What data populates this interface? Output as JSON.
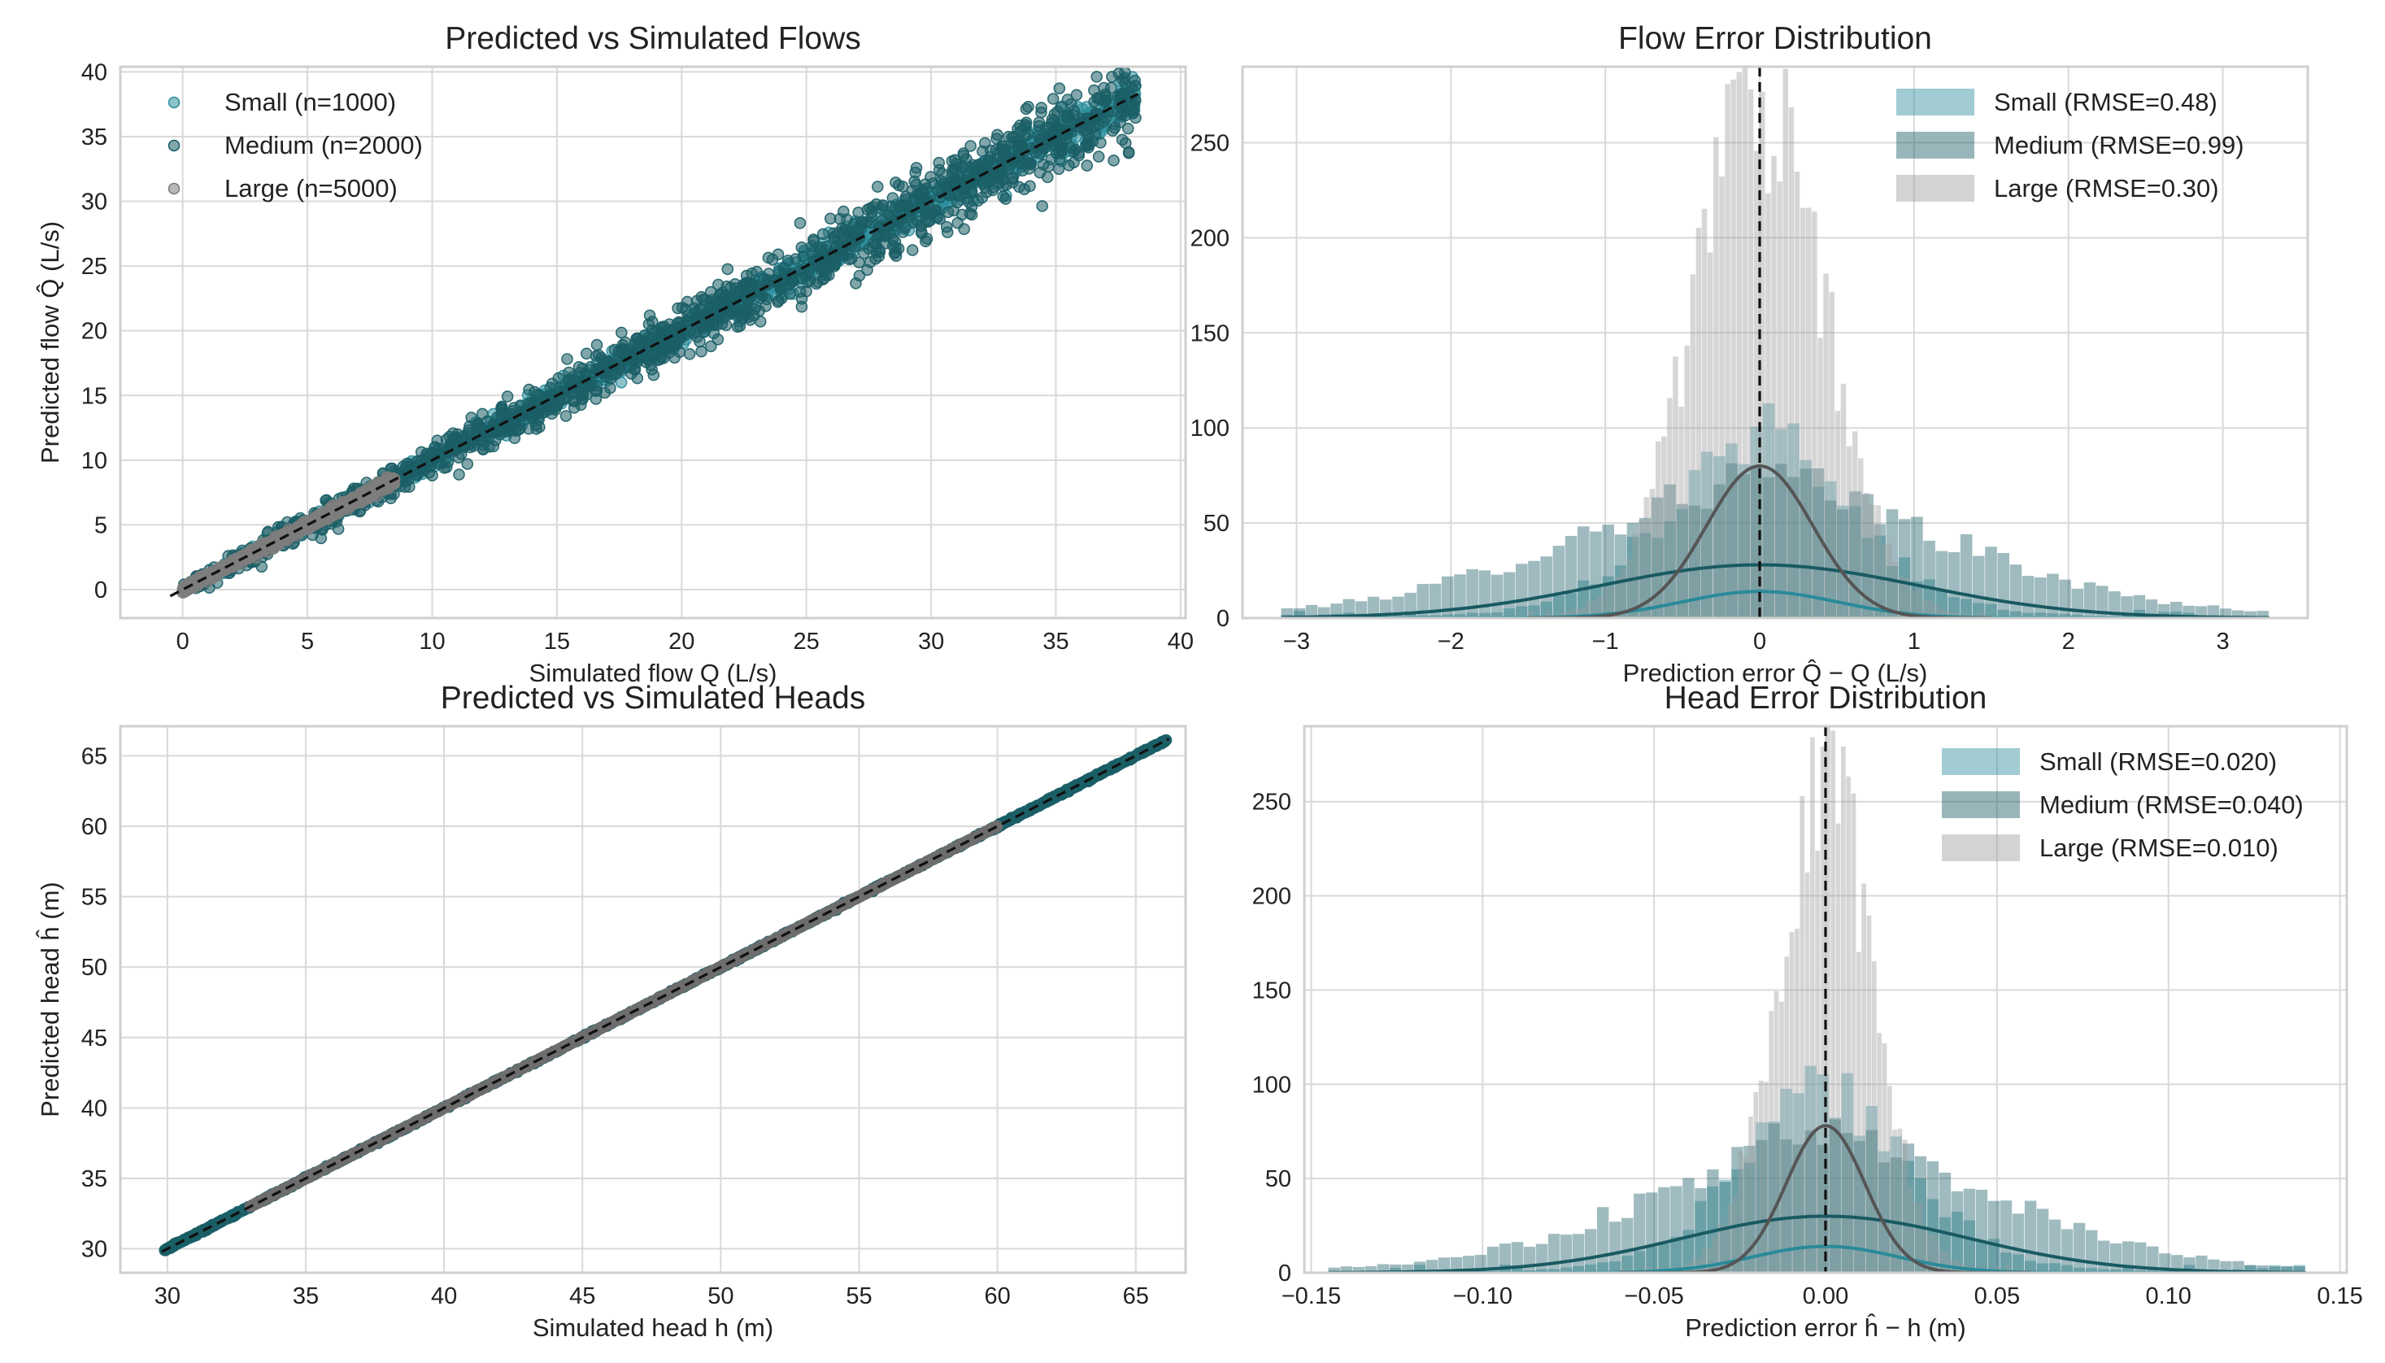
{
  "chart_data": [
    {
      "id": "flows_scatter",
      "type": "scatter",
      "title": "Predicted vs Simulated Flows",
      "xlabel": "Simulated flow Q (L/s)",
      "ylabel": "Predicted flow Q̂ (L/s)",
      "xlim": [
        -2.5,
        40.2
      ],
      "ylim": [
        -2.2,
        40.4
      ],
      "xticks": [
        0,
        5,
        10,
        15,
        20,
        25,
        30,
        35,
        40
      ],
      "yticks": [
        0,
        5,
        10,
        15,
        20,
        25,
        30,
        35,
        40
      ],
      "grid": true,
      "legend_position": "top-left",
      "identity_line": {
        "from": -0.5,
        "to": 38.3,
        "style": "dashed",
        "color": "#111111"
      },
      "series": [
        {
          "name": "Small (n=1000)",
          "n": 1000,
          "x_range": [
            0,
            38.2
          ],
          "noise_sd": 0.48,
          "color": "#2f8f9d"
        },
        {
          "name": "Medium (n=2000)",
          "n": 2000,
          "x_range": [
            0,
            38.2
          ],
          "noise_sd": 0.99,
          "color": "#1b5e66"
        },
        {
          "name": "Large (n=5000)",
          "n": 5000,
          "x_range": [
            0,
            8.5
          ],
          "noise_sd": 0.3,
          "color": "#7d7d7d"
        }
      ]
    },
    {
      "id": "flows_hist",
      "type": "histogram",
      "title": "Flow Error Distribution",
      "xlabel": "Prediction error Q̂ − Q (L/s)",
      "ylabel": "",
      "xlim": [
        -3.35,
        3.55
      ],
      "ylim": [
        0,
        290
      ],
      "xticks": [
        -3,
        -2,
        -1,
        0,
        1,
        2,
        3
      ],
      "yticks": [
        0,
        50,
        100,
        150,
        200,
        250
      ],
      "grid": true,
      "legend_position": "top-right",
      "zero_line": {
        "x": 0,
        "style": "dashed",
        "color": "#111111"
      },
      "series": [
        {
          "name": "Small (RMSE=0.48)",
          "bins": 80,
          "range": [
            -3.1,
            3.3
          ],
          "peak": 100,
          "kde_peak": 14,
          "sd": 0.48,
          "color": "#2f8f9d"
        },
        {
          "name": "Medium (RMSE=0.99)",
          "bins": 80,
          "range": [
            -3.1,
            3.3
          ],
          "peak": 75,
          "kde_peak": 28,
          "sd": 0.99,
          "color": "#1b5e66"
        },
        {
          "name": "Large (RMSE=0.30)",
          "bins": 80,
          "range": [
            -1.5,
            1.5
          ],
          "peak": 272,
          "kde_peak": 80,
          "sd": 0.3,
          "color": "#9e9e9e"
        }
      ]
    },
    {
      "id": "heads_scatter",
      "type": "scatter",
      "title": "Predicted vs Simulated Heads",
      "xlabel": "Simulated head h (m)",
      "ylabel": "Predicted head ĥ (m)",
      "xlim": [
        28.3,
        66.8
      ],
      "ylim": [
        28.3,
        67.1
      ],
      "xticks": [
        30,
        35,
        40,
        45,
        50,
        55,
        60,
        65
      ],
      "yticks": [
        30,
        35,
        40,
        45,
        50,
        55,
        60,
        65
      ],
      "grid": true,
      "legend_position": "none",
      "identity_line": {
        "from": 29.8,
        "to": 66.2,
        "style": "dashed",
        "color": "#111111"
      },
      "series": [
        {
          "name": "Small",
          "n": 1000,
          "x_range": [
            29.9,
            66.1
          ],
          "noise_sd": 0.02,
          "color": "#2f8f9d"
        },
        {
          "name": "Medium",
          "n": 2000,
          "x_range": [
            29.9,
            66.1
          ],
          "noise_sd": 0.04,
          "color": "#1b5e66"
        },
        {
          "name": "Large",
          "n": 5000,
          "x_range": [
            33.0,
            60.0
          ],
          "noise_sd": 0.01,
          "color": "#6e6e6e"
        }
      ]
    },
    {
      "id": "heads_hist",
      "type": "histogram",
      "title": "Head Error Distribution",
      "xlabel": "Prediction error ĥ − h (m)",
      "ylabel": "",
      "xlim": [
        -0.152,
        0.152
      ],
      "ylim": [
        0,
        290
      ],
      "xticks": [
        -0.15,
        -0.1,
        -0.05,
        0.0,
        0.05,
        0.1,
        0.15
      ],
      "xtick_labels": [
        "−0.15",
        "−0.10",
        "−0.05",
        "0.00",
        "0.05",
        "0.10",
        "0.15"
      ],
      "yticks": [
        0,
        50,
        100,
        150,
        200,
        250
      ],
      "grid": true,
      "legend_position": "top-right",
      "zero_line": {
        "x": 0,
        "style": "dashed",
        "color": "#111111"
      },
      "series": [
        {
          "name": "Small (RMSE=0.020)",
          "bins": 80,
          "range": [
            -0.145,
            0.14
          ],
          "peak": 100,
          "kde_peak": 14,
          "sd": 0.02,
          "color": "#2f8f9d"
        },
        {
          "name": "Medium (RMSE=0.040)",
          "bins": 80,
          "range": [
            -0.145,
            0.14
          ],
          "peak": 75,
          "kde_peak": 30,
          "sd": 0.04,
          "color": "#1b5e66"
        },
        {
          "name": "Large (RMSE=0.010)",
          "bins": 80,
          "range": [
            -0.06,
            0.06
          ],
          "peak": 262,
          "kde_peak": 78,
          "sd": 0.01,
          "color": "#9e9e9e"
        }
      ]
    }
  ]
}
